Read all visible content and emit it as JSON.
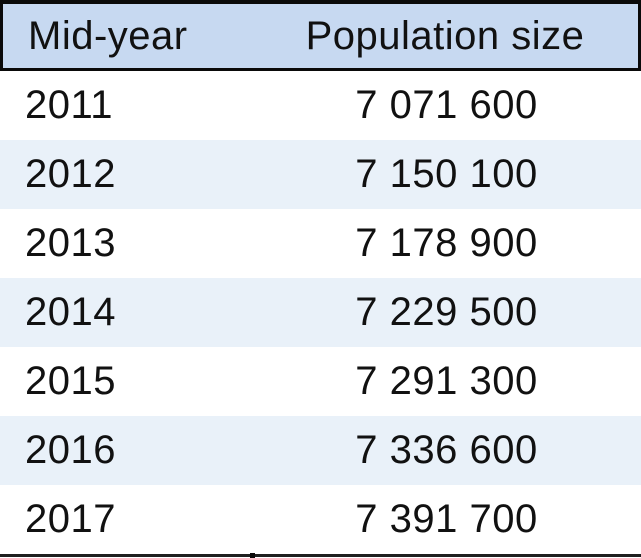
{
  "table": {
    "columns": [
      {
        "label": "Mid-year"
      },
      {
        "label": "Population size"
      }
    ],
    "rows": [
      {
        "year": "2011",
        "population": "7 071 600"
      },
      {
        "year": "2012",
        "population": "7 150 100"
      },
      {
        "year": "2013",
        "population": "7 178 900"
      },
      {
        "year": "2014",
        "population": "7 229 500"
      },
      {
        "year": "2015",
        "population": "7 291 300"
      },
      {
        "year": "2016",
        "population": "7 336 600"
      },
      {
        "year": "2017",
        "population": "7 391 700"
      }
    ]
  },
  "chart_data": {
    "type": "table",
    "title": "",
    "columns": [
      "Mid-year",
      "Population size"
    ],
    "categories": [
      "2011",
      "2012",
      "2013",
      "2014",
      "2015",
      "2016",
      "2017"
    ],
    "values": [
      7071600,
      7150100,
      7178900,
      7229500,
      7291300,
      7336600,
      7391700
    ],
    "rows": [
      [
        "2011",
        "7 071 600"
      ],
      [
        "2012",
        "7 150 100"
      ],
      [
        "2013",
        "7 178 900"
      ],
      [
        "2014",
        "7 229 500"
      ],
      [
        "2015",
        "7 291 300"
      ],
      [
        "2016",
        "7 336 600"
      ],
      [
        "2017",
        "7 391 700"
      ]
    ],
    "layout": {
      "header_box_border": true,
      "alternating_row_shading": true,
      "legend": "none",
      "grid": "horizontal-rules-only"
    }
  },
  "colors": {
    "header_bg": "#c7d9f1",
    "row_alt_bg": "#e9f1f9",
    "border_color": "#0a0a0a",
    "bottom_border_color": "#1f1f1f",
    "text_color": "#111111"
  }
}
